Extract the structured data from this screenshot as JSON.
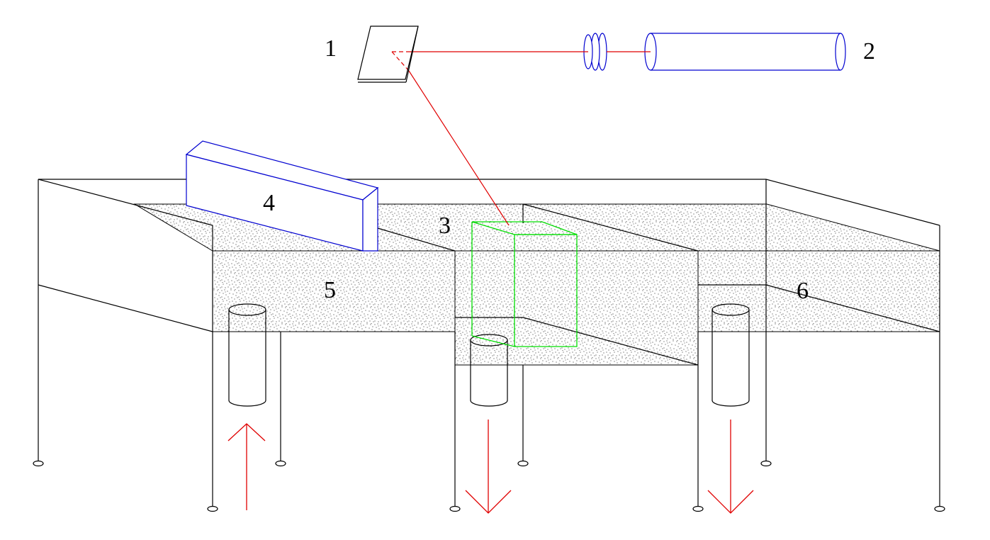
{
  "labels": {
    "mirror": "1",
    "laser": "2",
    "measurement_zone": "3",
    "guide_block": "4",
    "inlet_chamber": "5",
    "outlet_chamber": "6"
  },
  "flow_directions": {
    "inlet": "up",
    "middle_outlet": "down",
    "right_outlet": "down"
  },
  "colors": {
    "outline": "#000000",
    "laser_beam": "#e00000",
    "laser_and_lens": "#0000d0",
    "guide_block": "#0000d0",
    "measurement_volume": "#00dd00",
    "flow_arrow": "#e00000",
    "particles": "#000000"
  }
}
